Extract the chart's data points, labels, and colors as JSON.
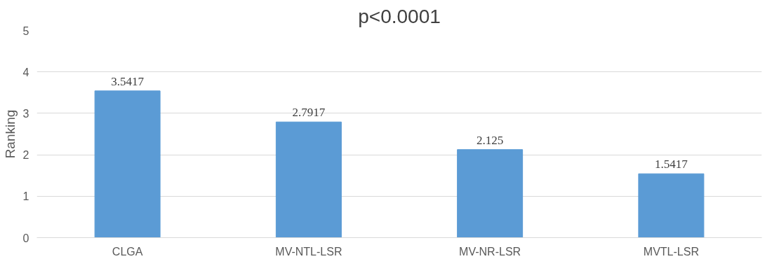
{
  "chart_data": {
    "type": "bar",
    "title": "p<0.0001",
    "ylabel": "Ranking",
    "categories": [
      "CLGA",
      "MV-NTL-LSR",
      "MV-NR-LSR",
      "MVTL-LSR"
    ],
    "values": [
      3.5417,
      2.7917,
      2.125,
      1.5417
    ],
    "value_labels": [
      "3.5417",
      "2.7917",
      "2.125",
      "1.5417"
    ],
    "color": "#5b9bd5",
    "ylim": [
      0,
      5
    ],
    "yticks": [
      0,
      1,
      2,
      3,
      4,
      5
    ],
    "grid": "y"
  }
}
